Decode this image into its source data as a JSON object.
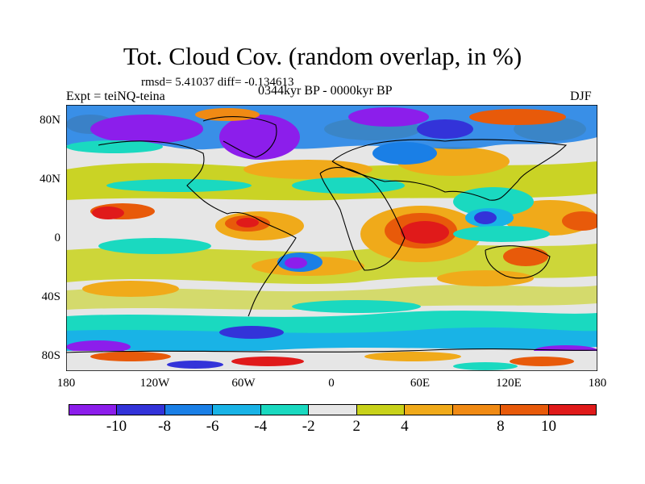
{
  "title": "Tot. Cloud Cov. (random overlap, in %)",
  "stats": "rmsd= 5.41037 diff= -0.134613",
  "expt": "Expt = teiNQ-teina",
  "period": "0344kyr BP - 0000kyr BP",
  "season": "DJF",
  "lat_ticks": [
    "80N",
    "40N",
    "0",
    "40S",
    "80S"
  ],
  "lon_ticks": [
    "180",
    "120W",
    "60W",
    "0",
    "60E",
    "120E",
    "180"
  ],
  "colorbar": {
    "colors": [
      "#8c1eeb",
      "#3333d9",
      "#1a7fe6",
      "#19b3e6",
      "#1ad9c0",
      "#e6e6e6",
      "#c8d21a",
      "#f0aa1a",
      "#f08a14",
      "#e85a0a",
      "#e01a1a"
    ],
    "labels": [
      "-10",
      "-8",
      "-6",
      "-4",
      "-2",
      "2",
      "4",
      "8",
      "10"
    ]
  }
}
